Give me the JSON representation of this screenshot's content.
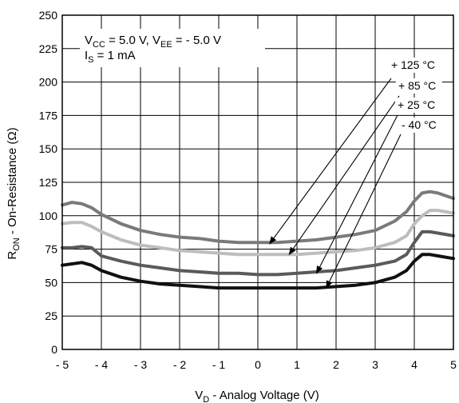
{
  "chart_data": {
    "type": "line",
    "title": "",
    "xlabel": {
      "main": "V",
      "sub": "D",
      "rest": " - Analog Voltage (V)"
    },
    "ylabel": {
      "main": "R",
      "sub": "ON",
      "rest": " - On-Resistance (Ω)"
    },
    "xlim": [
      -5,
      5
    ],
    "ylim": [
      0,
      250
    ],
    "grid": true,
    "x_ticks": [
      -5,
      -4,
      -3,
      -2,
      -1,
      0,
      1,
      2,
      3,
      4,
      5
    ],
    "x_tick_labels": [
      "- 5",
      "- 4",
      "- 3",
      "- 2",
      "- 1",
      "0",
      "1",
      "2",
      "3",
      "4",
      "5"
    ],
    "y_ticks": [
      0,
      25,
      50,
      75,
      100,
      125,
      150,
      175,
      200,
      225,
      250
    ],
    "y_tick_labels": [
      "0",
      "25",
      "50",
      "75",
      "100",
      "125",
      "150",
      "175",
      "200",
      "225",
      "250"
    ],
    "conditions": {
      "line1": {
        "a": "V",
        "a_sub": "CC",
        "b": " = 5.0 V, V",
        "b_sub": "EE",
        "c": " = - 5.0 V"
      },
      "line2": {
        "a": "I",
        "a_sub": "S",
        "b": " = 1 mA"
      }
    },
    "series": [
      {
        "name": "+ 125 °C",
        "color": "#7a7a7a",
        "x": [
          -5,
          -4.75,
          -4.5,
          -4.25,
          -4,
          -3.5,
          -3,
          -2.5,
          -2,
          -1.5,
          -1,
          -0.5,
          0,
          0.5,
          1,
          1.5,
          2,
          2.5,
          3,
          3.5,
          3.8,
          4.0,
          4.2,
          4.4,
          4.6,
          5
        ],
        "y": [
          108,
          110,
          109,
          106,
          101,
          94,
          89,
          86,
          84,
          83,
          81,
          80,
          80,
          80,
          81,
          82,
          84,
          86,
          89,
          96,
          103,
          111,
          117,
          118,
          117,
          113
        ]
      },
      {
        "name": "+ 85 °C",
        "color": "#bdbdbd",
        "x": [
          -5,
          -4.75,
          -4.5,
          -4.25,
          -4,
          -3.5,
          -3,
          -2.5,
          -2,
          -1.5,
          -1,
          -0.5,
          0,
          0.5,
          1,
          1.5,
          2,
          2.5,
          3,
          3.5,
          3.8,
          4.0,
          4.2,
          4.4,
          4.6,
          5
        ],
        "y": [
          94,
          95,
          95,
          92,
          88,
          82,
          78,
          76,
          74,
          73,
          72,
          71,
          71,
          71,
          71,
          72,
          73,
          74,
          76,
          80,
          85,
          94,
          100,
          104,
          104,
          102
        ]
      },
      {
        "name": "+ 25 °C",
        "color": "#5a5a5a",
        "x": [
          -5,
          -4.75,
          -4.5,
          -4.25,
          -4,
          -3.5,
          -3,
          -2.5,
          -2,
          -1.5,
          -1,
          -0.5,
          0,
          0.5,
          1,
          1.5,
          2,
          2.5,
          3,
          3.5,
          3.8,
          4.0,
          4.2,
          4.4,
          4.6,
          5
        ],
        "y": [
          76,
          76,
          77,
          76,
          70,
          66,
          63,
          61,
          59,
          58,
          57,
          57,
          56,
          56,
          57,
          58,
          59,
          61,
          63,
          66,
          71,
          80,
          88,
          88,
          87,
          85
        ]
      },
      {
        "name": "- 40 °C",
        "color": "#111111",
        "x": [
          -5,
          -4.75,
          -4.5,
          -4.25,
          -4,
          -3.5,
          -3,
          -2.5,
          -2,
          -1.5,
          -1,
          -0.5,
          0,
          0.5,
          1,
          1.5,
          2,
          2.5,
          3,
          3.5,
          3.8,
          4.0,
          4.2,
          4.4,
          4.6,
          5
        ],
        "y": [
          63,
          64,
          65,
          63,
          59,
          54,
          51,
          49,
          48,
          47,
          46,
          46,
          46,
          46,
          46,
          46,
          47,
          48,
          50,
          54,
          59,
          66,
          71,
          71,
          70,
          68
        ]
      }
    ],
    "annotations": [
      {
        "label": "+ 125 °C",
        "target_x": 0.3,
        "target_y": 79
      },
      {
        "label": "+ 85 °C",
        "target_x": 0.8,
        "target_y": 71
      },
      {
        "label": "+ 25 °C",
        "target_x": 1.5,
        "target_y": 57
      },
      {
        "label": "- 40 °C",
        "target_x": 1.75,
        "target_y": 46
      }
    ]
  }
}
